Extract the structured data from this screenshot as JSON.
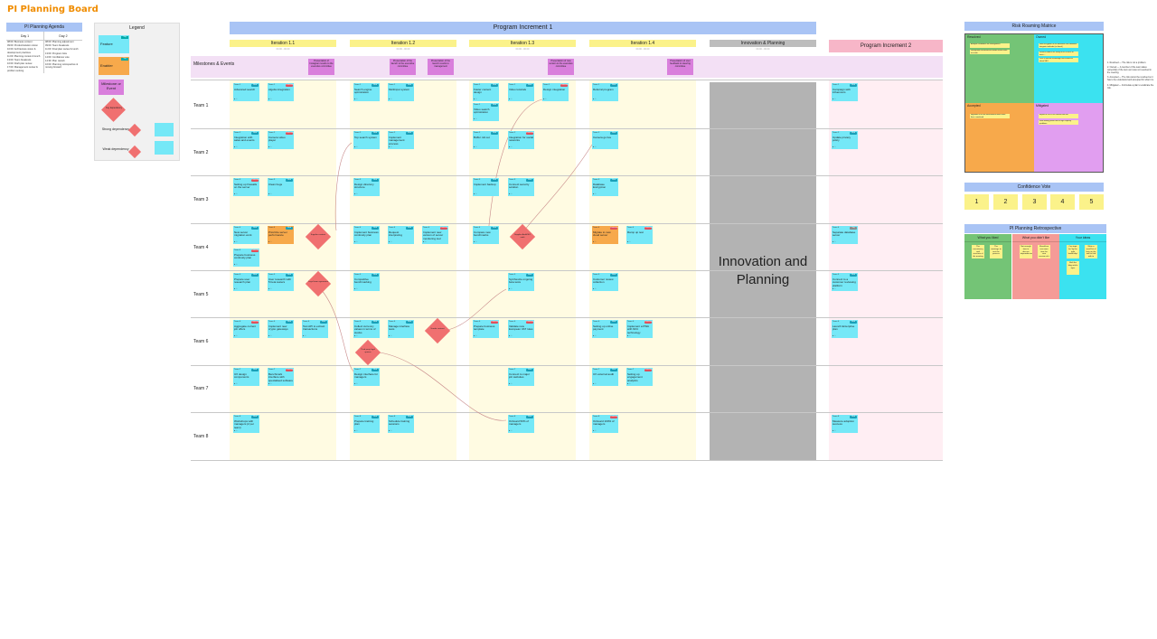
{
  "board_title": "PI Planning Board",
  "agenda": {
    "title": "PI Planning Agenda",
    "days": [
      {
        "label": "Day 1",
        "items": [
          "08:00: Business context",
          "09:00: Product/solution vision",
          "10:00: Architecture vision & development practices",
          "11:00: Planning context & lunch",
          "13:00: Team breakouts",
          "16:00: Draft plan review",
          "17:00: Management review & problem solving"
        ]
      },
      {
        "label": "Day 2",
        "items": [
          "08:00: Planning adjustment",
          "09:00: Team breakouts",
          "11:00: Final plan review & lunch",
          "13:00: Program risks",
          "14:00: Confidence vote",
          "14:30: Plan rework",
          "16:00: Planning retrospective & moving forward"
        ]
      }
    ]
  },
  "legend": {
    "title": "Legend",
    "feature": "Feature",
    "enabler": "Enabler",
    "milestone": "Milestone or Event",
    "key_dependency": "Key dependency",
    "strong_dep": "Strong dependency",
    "weak_dep": "Weak dependency",
    "tag": "Tag"
  },
  "program_increment": "Program Increment 1",
  "iterations": [
    {
      "name": "Iteration 1.1",
      "dates": "00.00 - 00.00"
    },
    {
      "name": "Iteration 1.2",
      "dates": "00.00 - 00.00"
    },
    {
      "name": "Iteration 1.3",
      "dates": "00.00 - 00.00"
    },
    {
      "name": "Iteration 1.4",
      "dates": "00.00 - 00.00"
    }
  ],
  "innovation_header": {
    "name": "Innovation & Planning",
    "dates": "00.00 - 00.00"
  },
  "innovation_block": "Innovation and Planning",
  "program_increment_2": "Program Increment 2",
  "milestones_label": "Milestones & Events",
  "milestones": [
    "Presentation of Instagram results to the executive committee",
    "Presentation of the launch to the executive committee",
    "Presentation of the launch results to management",
    "Presentation of new version to the executive committee",
    "Presentation of user feedback to steering committee"
  ],
  "teams": [
    "Team 1",
    "Team 2",
    "Team 3",
    "Team 4",
    "Team 5",
    "Team 6",
    "Team 7",
    "Team 8"
  ],
  "cards": [
    {
      "team": "Team 1",
      "tag": "Web",
      "title": "Advanced search"
    },
    {
      "team": "Team 1",
      "tag": "Customer",
      "title": "Algolia integration"
    },
    {
      "team": "Team 1",
      "tag": "Web",
      "title": "Search engine optimization"
    },
    {
      "team": "Team 1",
      "tag": "Web",
      "title": "Multiinput system"
    },
    {
      "team": "Team 1",
      "tag": "Web",
      "title": "Faster content design"
    },
    {
      "team": "Team 1",
      "tag": "Web",
      "title": "Video tutorials"
    },
    {
      "team": "Team 1",
      "tag": "Customer",
      "title": "Design integration"
    },
    {
      "team": "Team 1",
      "tag": "Web",
      "title": "Video search optimization"
    },
    {
      "team": "Team 1",
      "tag": "Web",
      "title": "Referral program"
    },
    {
      "team": "Team 1",
      "tag": "Web",
      "title": "Campaign with influencers"
    },
    {
      "team": "Team 2",
      "tag": "Web",
      "title": "Integration with sales and events"
    },
    {
      "team": "Team 2",
      "tag": "Customer",
      "title": "Camera video player"
    },
    {
      "team": "Team 2",
      "tag": "Web",
      "title": "Top search system"
    },
    {
      "team": "Team 2",
      "tag": "Web",
      "title": "Implement management process"
    },
    {
      "team": "Team 2",
      "tag": "Web",
      "title": "Buffer roll out"
    },
    {
      "team": "Team 2",
      "tag": "Customer",
      "title": "Integration for social networks"
    },
    {
      "team": "Team 2",
      "tag": "Web",
      "title": "Camera go live"
    },
    {
      "team": "Team 2",
      "tag": "Web",
      "title": "Update privacy policy"
    },
    {
      "team": "Team 3",
      "tag": "Customer",
      "title": "Setting up firewalls on the server"
    },
    {
      "team": "Team 3",
      "tag": "Web",
      "title": "Clean bugs"
    },
    {
      "team": "Team 3",
      "tag": "Web",
      "title": "Design directory structure"
    },
    {
      "team": "Team 3",
      "tag": "Web",
      "title": "Implement backup"
    },
    {
      "team": "Team 3",
      "tag": "Web",
      "title": "Connect security solution"
    },
    {
      "team": "Team 3",
      "tag": "Web",
      "title": "Database Encryption"
    },
    {
      "team": "Team 4",
      "tag": "Web",
      "title": "New server migration work"
    },
    {
      "team": "Team 4",
      "tag": "Web",
      "title": "Prioritize server performance"
    },
    {
      "team": "Team 4",
      "tag": "Customer",
      "title": "Prepare business continuity plan"
    },
    {
      "team": "Team 4",
      "tag": "Web",
      "title": "Implement business continuity plan"
    },
    {
      "team": "Team 4",
      "tag": "Web",
      "title": "Request interpreting"
    },
    {
      "team": "Team 4",
      "tag": "Customer",
      "title": "Implement new version of server monitoring tool"
    },
    {
      "team": "Team 4",
      "tag": "Web",
      "title": "Compare new benchmarks"
    },
    {
      "team": "Team 4",
      "tag": "Customer",
      "title": "Migrate to new cloud server"
    },
    {
      "team": "Team 4",
      "tag": "Customer",
      "title": "Ramp up test"
    },
    {
      "team": "Team 4",
      "tag": "Tag",
      "title": "Separate database server"
    },
    {
      "team": "Team 5",
      "tag": "Web",
      "title": "Prepare user research plan"
    },
    {
      "team": "Team 5",
      "tag": "Web",
      "title": "User research with 5 beta testers"
    },
    {
      "team": "Team 5",
      "tag": "Web",
      "title": "Competitive benchmarking"
    },
    {
      "team": "Team 5",
      "tag": "Web",
      "title": "Synthesize ongoing beta tests"
    },
    {
      "team": "Team 5",
      "tag": "Web",
      "title": "Customer review collection"
    },
    {
      "team": "Team 5",
      "tag": "Web",
      "title": "Connect to a customer reviewing platform"
    },
    {
      "team": "Team 6",
      "tag": "Customer",
      "title": "Aggregate current job offers"
    },
    {
      "team": "Team 6",
      "tag": "Web",
      "title": "Implement new crypto gateways"
    },
    {
      "team": "Team 6",
      "tag": "Web",
      "title": "Test API to extract transactions"
    },
    {
      "team": "Team 6",
      "tag": "Web",
      "title": "Collect currency values in terms of stocks"
    },
    {
      "team": "Team 6",
      "tag": "Web",
      "title": "Manage interface tests"
    },
    {
      "team": "Team 6",
      "tag": "Customer",
      "title": "Prepare business template"
    },
    {
      "team": "Team 6",
      "tag": "Customer",
      "title": "Validate new European VAT rules"
    },
    {
      "team": "Team 6",
      "tag": "Web",
      "title": "Setting up online payment"
    },
    {
      "team": "Team 6",
      "tag": "Customer",
      "title": "Implement a PWA with NFC technology"
    },
    {
      "team": "Team 6",
      "tag": "Web",
      "title": "Launch Enterprise plan"
    },
    {
      "team": "Team 7",
      "tag": "Web",
      "title": "UX design components"
    },
    {
      "team": "Team 7",
      "tag": "Customer",
      "title": "Benchmark interface with specialised software"
    },
    {
      "team": "Team 7",
      "tag": "Web",
      "title": "Design interface for managers"
    },
    {
      "team": "Team 7",
      "tag": "Web",
      "title": "Connect to major job websites"
    },
    {
      "team": "Team 7",
      "tag": "Web",
      "title": "UX external audit"
    },
    {
      "team": "Team 7",
      "tag": "Customer",
      "title": "Setting up engagement analytics"
    },
    {
      "team": "Team 8",
      "tag": "Web",
      "title": "Workshops with managers (2 per team)"
    },
    {
      "team": "Team 8",
      "tag": "Web",
      "title": "Prepare training plan"
    },
    {
      "team": "Team 8",
      "tag": "Web",
      "title": "Schedule training sessions"
    },
    {
      "team": "Team 8",
      "tag": "Web",
      "title": "Onboard 50% of managers"
    },
    {
      "team": "Team 8",
      "tag": "Customer",
      "title": "Onboard 100% of managers"
    },
    {
      "team": "Team 8",
      "tag": "Web",
      "title": "Measure adoption success"
    }
  ],
  "diamonds": [
    "Supplier contract",
    "Legal team agreement",
    "Supplier Audit/ISO audit",
    "Vendor contract",
    "Third party legal opinion"
  ],
  "risk": {
    "title": "Risk Roaming Matrice",
    "quadrants": [
      {
        "label": "Resolved",
        "color": "#74c476",
        "notes": [
          "Analyze candidates for management",
          "Recognition and business model review more accurate"
        ]
      },
      {
        "label": "Owned",
        "color": "#3be2f0",
        "notes": [
          "New encryption of the database and additional integrate methods (as found)",
          "Several leaders are ready to be in office or more ...",
          "Lack of internal knowledge and resources about SEO"
        ]
      },
      {
        "label": "Accepted",
        "color": "#f7a94b",
        "notes": [
          "Migration to a new environment takes more than a weekend"
        ]
      },
      {
        "label": "Mitigated",
        "color": "#e19ef0",
        "notes": [
          "Impact of GDPR on current tool use",
          "Slow testing phase due to high capacity problems"
        ]
      }
    ],
    "definitions": [
      "1. Resolved — The risk is not a problem.",
      "2. Owned — A member of the team takes ownership of the item as it was not resolved in the meeting.",
      "3. Accepted — The risk cannot be resolved so it has to be understood and accepted for what it is.",
      "4. Mitigated — Formulate a plan to eradicate the risk."
    ]
  },
  "confidence_vote": {
    "title": "Confidence Vote",
    "values": [
      "1",
      "2",
      "3",
      "4",
      "5"
    ]
  },
  "retro": {
    "title": "PI Planning Retrospective",
    "columns": [
      {
        "label": "What you liked",
        "color": "#74c476",
        "notes": [
          "The consistency and structure of the meeting",
          "The meetings to test the process"
        ]
      },
      {
        "label": "What you didn't like",
        "color": "#f59b97",
        "notes": [
          "Not enough time to discuss dependencies",
          "Should we use more time for core session of it"
        ]
      },
      {
        "label": "Your ideas",
        "color": "#3be2f0",
        "notes": [
          "Can topic be 'by the right leadership'",
          "Write a small list of bets on the wall to find with to",
          "Shift the blog article topic"
        ]
      }
    ]
  }
}
